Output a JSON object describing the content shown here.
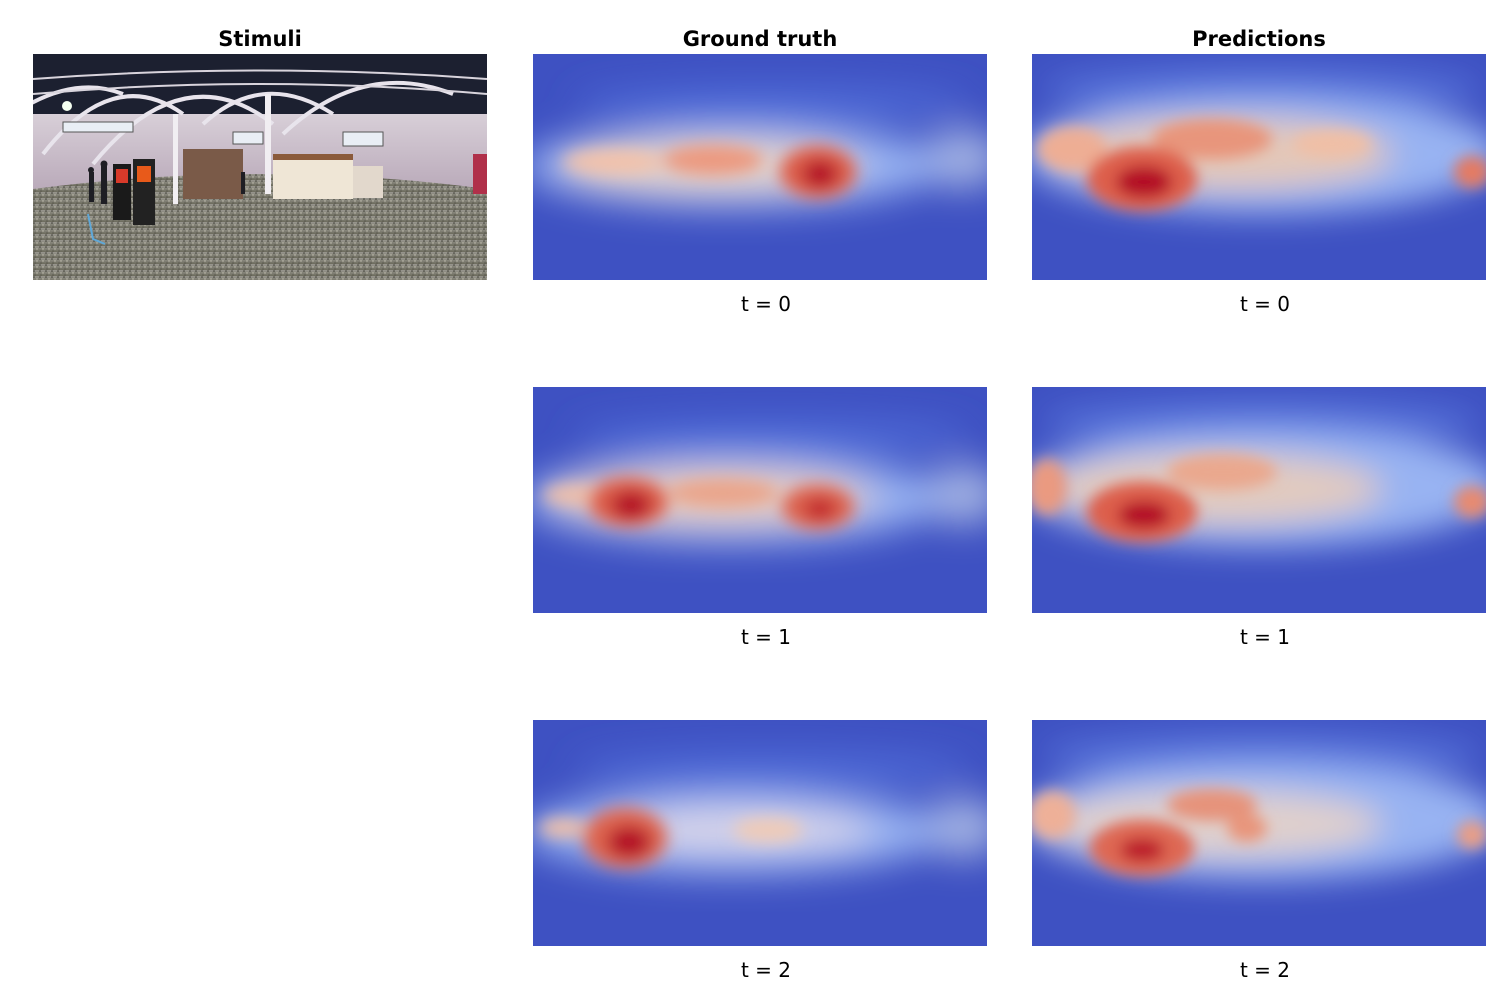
{
  "columns": {
    "stimuli": "Stimuli",
    "ground_truth": "Ground truth",
    "predictions": "Predictions"
  },
  "time_labels": [
    "t = 0",
    "t = 1",
    "t = 2"
  ],
  "colormap": {
    "low": "#3b4cc0",
    "mid": "#dddddd",
    "high": "#b40426"
  },
  "stimulus_image": "equirectangular panorama of an indoor market hall"
}
